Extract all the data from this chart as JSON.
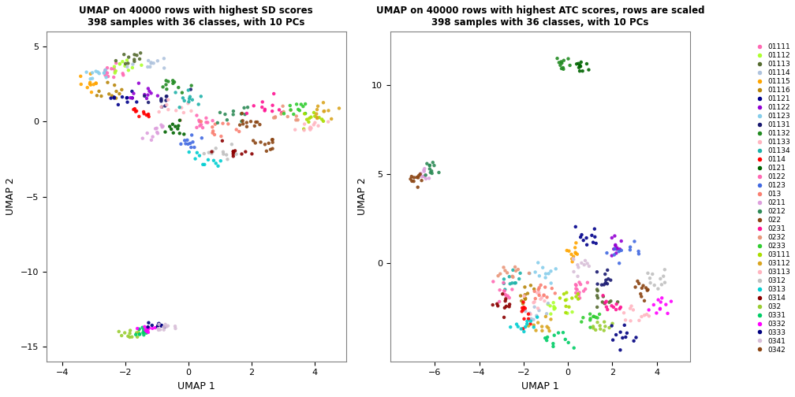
{
  "title1": "UMAP on 40000 rows with highest SD scores\n398 samples with 36 classes, with 10 PCs",
  "title2": "UMAP on 40000 rows with highest ATC scores, rows are scaled\n398 samples with 36 classes, with 10 PCs",
  "xlabel": "UMAP 1",
  "ylabel": "UMAP 2",
  "classes": [
    "01111",
    "01112",
    "01113",
    "01114",
    "01115",
    "01116",
    "01121",
    "01122",
    "01123",
    "01131",
    "01132",
    "01133",
    "01134",
    "0114",
    "0121",
    "0122",
    "0123",
    "013",
    "0211",
    "0212",
    "022",
    "0231",
    "0232",
    "0233",
    "03111",
    "03112",
    "03113",
    "0312",
    "0313",
    "0314",
    "032",
    "0331",
    "0332",
    "0333",
    "0341",
    "0342"
  ],
  "colors": [
    "#FF69B4",
    "#ADFF2F",
    "#556B2F",
    "#B0C4DE",
    "#FFA500",
    "#B8860B",
    "#00008B",
    "#9400D3",
    "#87CEEB",
    "#191970",
    "#228B22",
    "#FFB6C1",
    "#20B2AA",
    "#FF0000",
    "#006400",
    "#FF69B4",
    "#4169E1",
    "#FA8072",
    "#DDA0DD",
    "#2E8B57",
    "#8B4513",
    "#FF1493",
    "#E9967A",
    "#32CD32",
    "#AADD00",
    "#DAA520",
    "#FFB6C1",
    "#C0C0C0",
    "#00CED1",
    "#8B0000",
    "#9ACD32",
    "#00CD66",
    "#FF00FF",
    "#000080",
    "#D8BFD8",
    "#8B4513"
  ],
  "xlim1": [
    -4.5,
    5.0
  ],
  "ylim1": [
    -16,
    6
  ],
  "xticks1": [
    -4,
    -2,
    0,
    2,
    4
  ],
  "yticks1": [
    -15,
    -10,
    -5,
    0,
    5
  ],
  "xlim2": [
    -8.0,
    5.5
  ],
  "ylim2": [
    -5.5,
    13
  ],
  "xticks2": [
    -6,
    -4,
    -2,
    0,
    2,
    4
  ],
  "yticks2": [
    0,
    5,
    10
  ],
  "figsize": [
    10.08,
    5.04
  ],
  "dpi": 100
}
